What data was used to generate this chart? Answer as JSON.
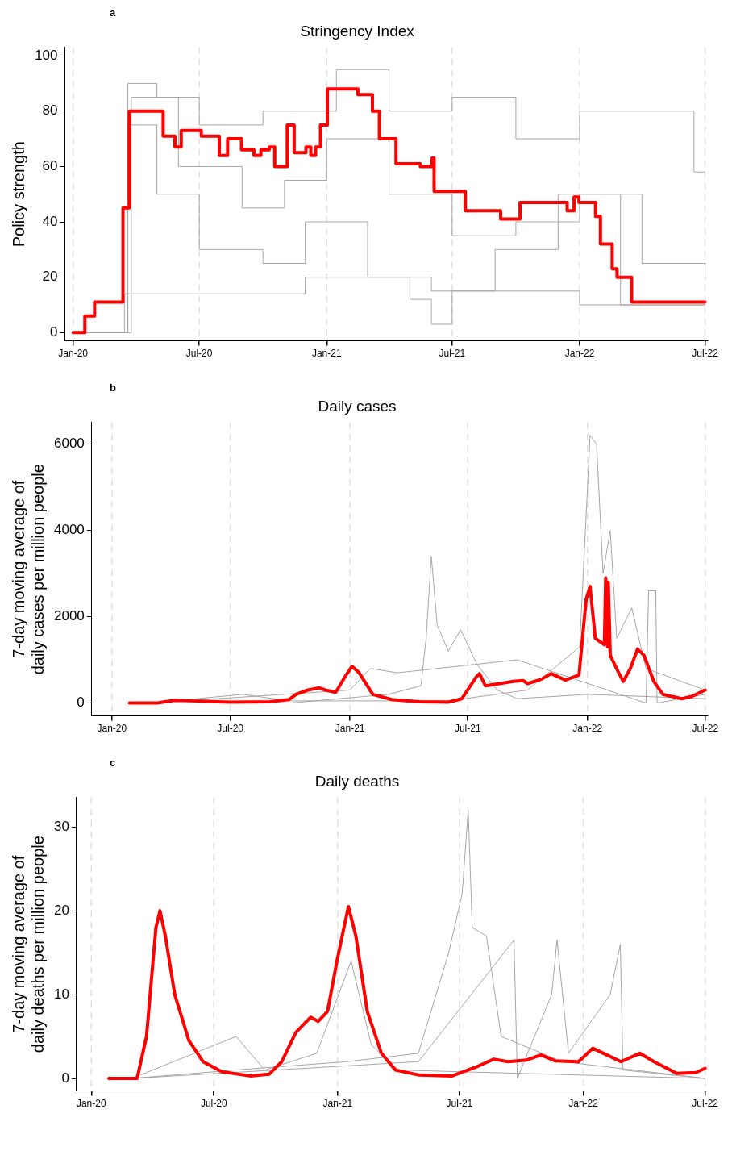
{
  "chart_data": [
    {
      "type": "step",
      "title": "Stringency Index",
      "ylabel": "Policy strength",
      "annotations": [
        "a"
      ],
      "grid": "x",
      "xlim": [
        "2019-12-20",
        "2022-07-05"
      ],
      "xticks": [
        {
          "value": "2020-01-01",
          "label": "Jan-20"
        },
        {
          "value": "2020-07-01",
          "label": "Jul-20"
        },
        {
          "value": "2021-01-01",
          "label": "Jan-21"
        },
        {
          "value": "2021-07-01",
          "label": "Jul-21"
        },
        {
          "value": "2022-01-01",
          "label": "Jan-22"
        },
        {
          "value": "2022-07-01",
          "label": "Jul-22"
        }
      ],
      "ylim": [
        -3,
        103
      ],
      "yticks": [
        0,
        20,
        40,
        60,
        80,
        100
      ],
      "series": [
        {
          "color": "#a6a6a6",
          "x": [
            "2020-01-01",
            "2020-03-20",
            "2020-05-01",
            "2020-07-01",
            "2020-10-01",
            "2021-01-15",
            "2021-04-01",
            "2021-07-01",
            "2021-10-01",
            "2022-01-01",
            "2022-06-15",
            "2022-07-01"
          ],
          "values": [
            0,
            90,
            85,
            75,
            80,
            95,
            80,
            85,
            70,
            80,
            58,
            58
          ]
        },
        {
          "color": "#a6a6a6",
          "x": [
            "2020-01-01",
            "2020-03-15",
            "2020-08-01",
            "2020-12-01",
            "2021-05-01",
            "2021-06-01",
            "2021-07-01",
            "2022-01-01",
            "2022-07-01"
          ],
          "values": [
            0,
            14,
            14,
            20,
            12,
            3,
            15,
            10,
            10
          ]
        },
        {
          "color": "#a6a6a6",
          "x": [
            "2020-01-01",
            "2020-03-25",
            "2020-06-01",
            "2020-09-01",
            "2020-11-01",
            "2021-01-01",
            "2021-04-01",
            "2021-07-01",
            "2021-10-01",
            "2022-01-01",
            "2022-04-01",
            "2022-07-01"
          ],
          "values": [
            0,
            85,
            60,
            45,
            55,
            70,
            50,
            35,
            40,
            50,
            25,
            20
          ]
        },
        {
          "color": "#a6a6a6",
          "x": [
            "2020-01-01",
            "2020-03-20",
            "2020-05-01",
            "2020-07-01",
            "2020-10-01",
            "2020-12-01",
            "2021-03-01",
            "2021-06-01",
            "2021-09-01",
            "2021-12-01",
            "2022-03-01",
            "2022-07-01"
          ],
          "values": [
            0,
            75,
            50,
            30,
            25,
            40,
            20,
            15,
            30,
            50,
            10,
            10
          ]
        },
        {
          "color": "#ff0000",
          "x": [
            "2020-01-01",
            "2020-01-18",
            "2020-02-01",
            "2020-03-13",
            "2020-03-22",
            "2020-05-10",
            "2020-05-27",
            "2020-06-05",
            "2020-07-04",
            "2020-07-30",
            "2020-08-11",
            "2020-08-31",
            "2020-09-18",
            "2020-09-28",
            "2020-10-10",
            "2020-10-18",
            "2020-11-05",
            "2020-11-15",
            "2020-12-02",
            "2020-12-09",
            "2020-12-16",
            "2020-12-23",
            "2021-01-02",
            "2021-02-15",
            "2021-03-08",
            "2021-03-18",
            "2021-04-11",
            "2021-05-16",
            "2021-06-02",
            "2021-06-05",
            "2021-07-20",
            "2021-09-09",
            "2021-10-07",
            "2021-12-14",
            "2021-12-24",
            "2021-12-31",
            "2022-01-24",
            "2022-01-31",
            "2022-02-17",
            "2022-02-24",
            "2022-03-17",
            "2022-04-17",
            "2022-07-01"
          ],
          "values": [
            0,
            6,
            11,
            45,
            80,
            71,
            67,
            73,
            71,
            64,
            70,
            66,
            64,
            66,
            67,
            60,
            75,
            65,
            67,
            64,
            67,
            75,
            88,
            86,
            80,
            70,
            61,
            60,
            63,
            51,
            44,
            41,
            47,
            44,
            49,
            47,
            42,
            32,
            23,
            20,
            11,
            11,
            11
          ]
        }
      ]
    },
    {
      "type": "line",
      "title": "Daily cases",
      "ylabel": "7-day moving average of daily cases per million people",
      "annotations": [
        "b"
      ],
      "grid": "x",
      "xlim": [
        "2019-12-01",
        "2022-07-05"
      ],
      "xticks": [
        {
          "value": "2020-01-01",
          "label": "Jan-20"
        },
        {
          "value": "2020-07-01",
          "label": "Jul-20"
        },
        {
          "value": "2021-01-01",
          "label": "Jan-21"
        },
        {
          "value": "2021-07-01",
          "label": "Jul-21"
        },
        {
          "value": "2022-01-01",
          "label": "Jan-22"
        },
        {
          "value": "2022-07-01",
          "label": "Jul-22"
        }
      ],
      "ylim": [
        -300,
        6500
      ],
      "yticks": [
        0,
        2000,
        4000,
        6000
      ],
      "series": [
        {
          "color": "#a6a6a6",
          "x": [
            "2020-01-28",
            "2020-10-01",
            "2021-03-01",
            "2021-04-20",
            "2021-04-28",
            "2021-05-06",
            "2021-05-15",
            "2021-06-01",
            "2021-06-20",
            "2021-07-15",
            "2021-08-15",
            "2021-09-15",
            "2022-01-01",
            "2022-07-01"
          ],
          "values": [
            0,
            0,
            200,
            400,
            1500,
            3400,
            1800,
            1200,
            1700,
            900,
            300,
            100,
            200,
            100
          ]
        },
        {
          "color": "#a6a6a6",
          "x": [
            "2020-03-01",
            "2020-07-20",
            "2020-10-01",
            "2021-06-01",
            "2021-10-01",
            "2021-12-20",
            "2022-01-05",
            "2022-01-15",
            "2022-01-25",
            "2022-02-05",
            "2022-02-15",
            "2022-03-10",
            "2022-04-01",
            "2022-07-01"
          ],
          "values": [
            0,
            200,
            50,
            50,
            300,
            1300,
            6200,
            6000,
            3000,
            4000,
            1500,
            2200,
            800,
            300
          ]
        },
        {
          "color": "#a6a6a6",
          "x": [
            "2020-03-01",
            "2021-01-01",
            "2021-02-01",
            "2021-03-15",
            "2021-09-15",
            "2022-04-01",
            "2022-04-05",
            "2022-04-16",
            "2022-04-18",
            "2022-07-01"
          ],
          "values": [
            0,
            300,
            800,
            700,
            1000,
            0,
            2600,
            2600,
            0,
            200
          ]
        },
        {
          "color": "#ff0000",
          "x": [
            "2020-01-28",
            "2020-03-11",
            "2020-04-06",
            "2020-05-01",
            "2020-07-01",
            "2020-08-31",
            "2020-09-29",
            "2020-10-10",
            "2020-10-28",
            "2020-11-15",
            "2020-11-24",
            "2020-12-10",
            "2020-12-24",
            "2021-01-04",
            "2021-01-15",
            "2021-02-05",
            "2021-03-06",
            "2021-04-18",
            "2021-06-01",
            "2021-06-22",
            "2021-07-14",
            "2021-07-19",
            "2021-07-28",
            "2021-08-19",
            "2021-09-09",
            "2021-09-24",
            "2021-10-01",
            "2021-10-22",
            "2021-11-06",
            "2021-11-28",
            "2021-12-19",
            "2021-12-30",
            "2022-01-05",
            "2022-01-13",
            "2022-01-27",
            "2022-01-29",
            "2022-02-01",
            "2022-02-02",
            "2022-02-05",
            "2022-02-18",
            "2022-02-25",
            "2022-03-08",
            "2022-03-19",
            "2022-03-29",
            "2022-04-13",
            "2022-04-27",
            "2022-05-26",
            "2022-06-10",
            "2022-07-01"
          ],
          "values": [
            0,
            0,
            60,
            50,
            20,
            30,
            80,
            200,
            300,
            350,
            300,
            250,
            600,
            850,
            700,
            200,
            80,
            30,
            20,
            100,
            600,
            680,
            400,
            450,
            500,
            520,
            450,
            550,
            680,
            530,
            650,
            2400,
            2700,
            1500,
            1350,
            2900,
            1300,
            2800,
            1100,
            700,
            500,
            800,
            1250,
            1100,
            500,
            200,
            100,
            150,
            300
          ]
        }
      ]
    },
    {
      "type": "line",
      "title": "Daily deaths",
      "ylabel": "7-day moving average of daily deaths per million people",
      "annotations": [
        "c"
      ],
      "grid": "x",
      "xlim": [
        "2019-12-10",
        "2022-07-05"
      ],
      "xticks": [
        {
          "value": "2020-01-01",
          "label": "Jan-20"
        },
        {
          "value": "2020-07-01",
          "label": "Jul-20"
        },
        {
          "value": "2021-01-01",
          "label": "Jan-21"
        },
        {
          "value": "2021-07-01",
          "label": "Jul-21"
        },
        {
          "value": "2022-01-01",
          "label": "Jan-22"
        },
        {
          "value": "2022-07-01",
          "label": "Jul-22"
        }
      ],
      "ylim": [
        -1.5,
        33.5
      ],
      "yticks": [
        0,
        10,
        20,
        30
      ],
      "series": [
        {
          "color": "#a6a6a6",
          "x": [
            "2020-03-01",
            "2020-08-01",
            "2021-01-15",
            "2021-05-01",
            "2021-06-15",
            "2021-07-05",
            "2021-07-14",
            "2021-07-20",
            "2021-08-10",
            "2021-09-01",
            "2021-12-01",
            "2022-07-01"
          ],
          "values": [
            0,
            1,
            2,
            3,
            15,
            22,
            32,
            18,
            17,
            5,
            2,
            0
          ]
        },
        {
          "color": "#a6a6a6",
          "x": [
            "2020-03-01",
            "2020-08-03",
            "2020-09-15",
            "2020-12-01",
            "2021-01-21",
            "2021-02-20",
            "2021-04-01",
            "2022-07-01"
          ],
          "values": [
            0,
            5,
            1,
            3,
            14,
            4,
            1,
            0
          ]
        },
        {
          "color": "#a6a6a6",
          "x": [
            "2020-03-01",
            "2021-05-01",
            "2021-09-20",
            "2021-09-25",
            "2021-11-15",
            "2021-11-23",
            "2021-12-10",
            "2022-02-10",
            "2022-02-25",
            "2022-03-01",
            "2022-07-01"
          ],
          "values": [
            0,
            2,
            16.5,
            0,
            10,
            16.5,
            3,
            10,
            16,
            1,
            0
          ]
        },
        {
          "color": "#ff0000",
          "x": [
            "2020-01-27",
            "2020-03-09",
            "2020-03-23",
            "2020-04-06",
            "2020-04-12",
            "2020-04-20",
            "2020-05-04",
            "2020-05-25",
            "2020-06-15",
            "2020-07-13",
            "2020-08-24",
            "2020-09-21",
            "2020-10-10",
            "2020-10-31",
            "2020-11-22",
            "2020-12-03",
            "2020-12-17",
            "2020-12-31",
            "2021-01-17",
            "2021-01-28",
            "2021-02-14",
            "2021-03-07",
            "2021-03-28",
            "2021-05-02",
            "2021-06-20",
            "2021-07-24",
            "2021-08-21",
            "2021-09-11",
            "2021-10-09",
            "2021-10-30",
            "2021-11-20",
            "2021-12-25",
            "2022-01-15",
            "2022-02-05",
            "2022-02-26",
            "2022-03-26",
            "2022-04-16",
            "2022-05-20",
            "2022-06-17",
            "2022-07-01"
          ],
          "values": [
            0,
            0,
            5,
            18,
            20,
            17,
            10,
            4.5,
            2,
            0.8,
            0.3,
            0.5,
            2,
            5.5,
            7.3,
            6.8,
            8,
            14,
            20.5,
            17,
            8,
            3,
            1,
            0.4,
            0.3,
            1.3,
            2.3,
            2,
            2.2,
            2.8,
            2.1,
            2,
            3.6,
            2.8,
            2,
            3,
            2,
            0.6,
            0.7,
            1.2
          ]
        }
      ]
    }
  ]
}
